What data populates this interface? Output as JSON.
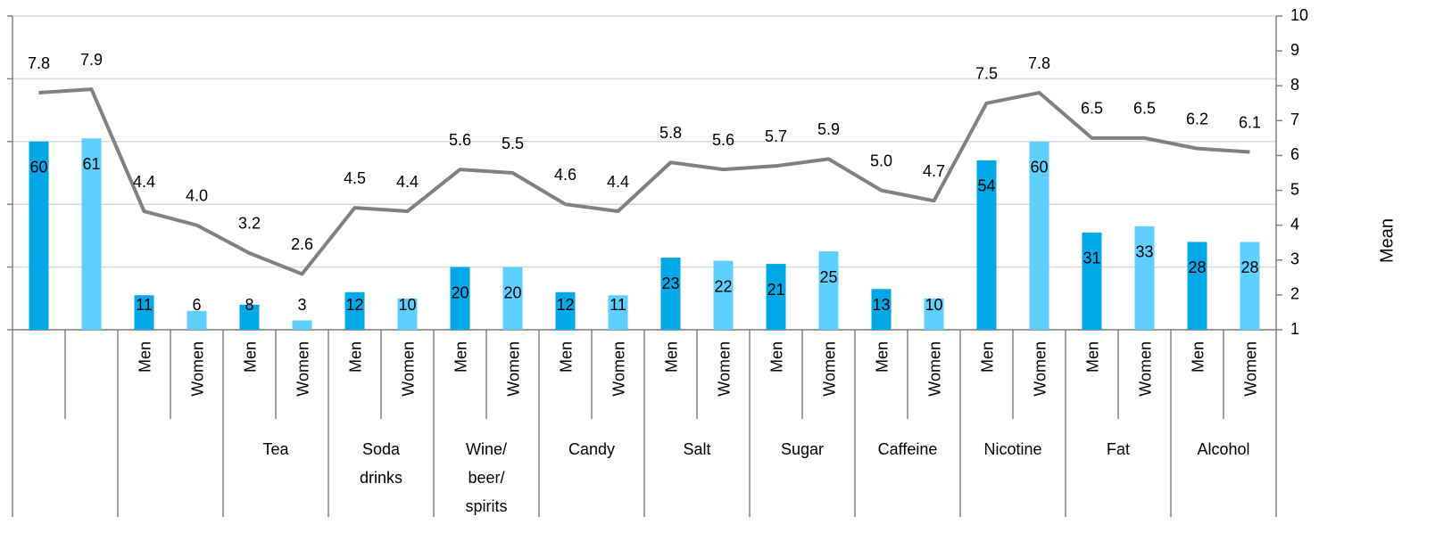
{
  "chart_data": {
    "type": "bar",
    "categories": [
      "",
      "",
      "Men",
      "Women",
      "Men",
      "Women",
      "Men",
      "Women",
      "Men",
      "Women",
      "Men",
      "Women",
      "Men",
      "Women",
      "Men",
      "Women",
      "Men",
      "Women",
      "Men",
      "Women",
      "Men",
      "Women",
      "Men",
      "Women"
    ],
    "groups": [
      "",
      "",
      "Tea",
      "Soda drinks",
      "Wine/ beer/ spirits",
      "Candy",
      "Salt",
      "Sugar",
      "Caffeine",
      "Nicotine",
      "Fat",
      "Alcohol"
    ],
    "series": [
      {
        "type": "bar",
        "colors": [
          "#00a8e8",
          "#5dd0ff",
          "#00a8e8",
          "#5dd0ff",
          "#00a8e8",
          "#5dd0ff",
          "#00a8e8",
          "#5dd0ff",
          "#00a8e8",
          "#5dd0ff",
          "#00a8e8",
          "#5dd0ff",
          "#00a8e8",
          "#5dd0ff",
          "#00a8e8",
          "#5dd0ff",
          "#00a8e8",
          "#5dd0ff",
          "#00a8e8",
          "#5dd0ff",
          "#00a8e8",
          "#5dd0ff",
          "#00a8e8",
          "#5dd0ff"
        ],
        "values": [
          60,
          61,
          11,
          6,
          8,
          3,
          12,
          10,
          20,
          20,
          12,
          11,
          23,
          22,
          21,
          25,
          13,
          10,
          54,
          60,
          31,
          33,
          28,
          28
        ]
      },
      {
        "type": "line",
        "axis": "y2",
        "color": "#808080",
        "values": [
          7.8,
          7.9,
          4.4,
          4.0,
          3.2,
          2.6,
          4.5,
          4.4,
          5.6,
          5.5,
          4.6,
          4.4,
          5.8,
          5.6,
          5.7,
          5.9,
          5.0,
          4.7,
          7.5,
          7.8,
          6.5,
          6.5,
          6.2,
          6.1
        ],
        "value_labels": [
          "7.8",
          "7.9",
          "4.4",
          "4.0",
          "3.2",
          "2.6",
          "4.5",
          "4.4",
          "5.6",
          "5.5",
          "4.6",
          "4.4",
          "5.8",
          "5.6",
          "5.7",
          "5.9",
          "5.0",
          "4.7",
          "7.5",
          "7.8",
          "6.5",
          "6.5",
          "6.2",
          "6.1"
        ]
      }
    ],
    "ylim": [
      0,
      100
    ],
    "yticks": [
      0,
      20,
      40,
      60,
      80,
      100
    ],
    "y2lim": [
      1,
      10
    ],
    "y2ticks": [
      1,
      2,
      3,
      4,
      5,
      6,
      7,
      8,
      9,
      10
    ],
    "y2label": "Mean",
    "grid": true
  }
}
